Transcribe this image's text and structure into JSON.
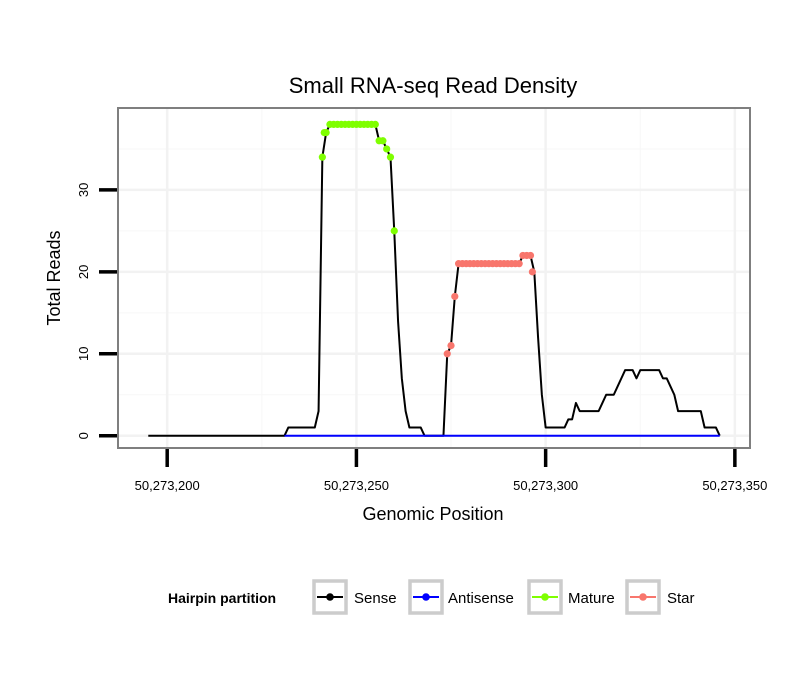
{
  "chart_data": {
    "type": "line",
    "title": "Small RNA-seq Read Density",
    "xlabel": "Genomic Position",
    "ylabel": "Total Reads",
    "xlim": [
      50273187,
      50273354
    ],
    "ylim": [
      -1.5,
      40
    ],
    "x_ticks": [
      50273200,
      50273250,
      50273300,
      50273350
    ],
    "x_tick_labels": [
      "50,273,200",
      "50,273,250",
      "50,273,300",
      "50,273,350"
    ],
    "y_ticks": [
      0,
      10,
      20,
      30
    ],
    "y_tick_labels": [
      "0",
      "10",
      "20",
      "30"
    ],
    "grid": true,
    "legend_position": "bottom",
    "legend": {
      "title": "Hairpin partition",
      "entries": [
        {
          "name": "Sense",
          "color": "#000000"
        },
        {
          "name": "Antisense",
          "color": "#0000ff"
        },
        {
          "name": "Mature",
          "color": "#7fff00"
        },
        {
          "name": "Star",
          "color": "#f8766d"
        }
      ]
    },
    "series": [
      {
        "name": "Sense",
        "color": "#000000",
        "points": [
          [
            50273195,
            0
          ],
          [
            50273231,
            0
          ],
          [
            50273232,
            1
          ],
          [
            50273239,
            1
          ],
          [
            50273240,
            3
          ],
          [
            50273241,
            34
          ],
          [
            50273242,
            37
          ],
          [
            50273243,
            38
          ],
          [
            50273255,
            38
          ],
          [
            50273256,
            36
          ],
          [
            50273257,
            36
          ],
          [
            50273258,
            35
          ],
          [
            50273259,
            34
          ],
          [
            50273260,
            25
          ],
          [
            50273261,
            14
          ],
          [
            50273262,
            7
          ],
          [
            50273263,
            3
          ],
          [
            50273264,
            1
          ],
          [
            50273267,
            1
          ],
          [
            50273268,
            0
          ],
          [
            50273273,
            0
          ],
          [
            50273274,
            10
          ],
          [
            50273275,
            11
          ],
          [
            50273276,
            17
          ],
          [
            50273277,
            21
          ],
          [
            50273293,
            21
          ],
          [
            50273294,
            22
          ],
          [
            50273296,
            22
          ],
          [
            50273297,
            20
          ],
          [
            50273298,
            12
          ],
          [
            50273299,
            5
          ],
          [
            50273300,
            1
          ],
          [
            50273305,
            1
          ],
          [
            50273306,
            2
          ],
          [
            50273307,
            2
          ],
          [
            50273308,
            4
          ],
          [
            50273309,
            3
          ],
          [
            50273314,
            3
          ],
          [
            50273315,
            4
          ],
          [
            50273316,
            5
          ],
          [
            50273318,
            5
          ],
          [
            50273319,
            6
          ],
          [
            50273320,
            7
          ],
          [
            50273321,
            8
          ],
          [
            50273323,
            8
          ],
          [
            50273324,
            7
          ],
          [
            50273325,
            8
          ],
          [
            50273330,
            8
          ],
          [
            50273331,
            7
          ],
          [
            50273332,
            7
          ],
          [
            50273333,
            6
          ],
          [
            50273334,
            5
          ],
          [
            50273335,
            3
          ],
          [
            50273341,
            3
          ],
          [
            50273342,
            1
          ],
          [
            50273345,
            1
          ],
          [
            50273346,
            0
          ]
        ]
      },
      {
        "name": "Antisense",
        "color": "#0000ff",
        "points": [
          [
            50273231,
            0
          ],
          [
            50273346,
            0
          ]
        ]
      },
      {
        "name": "Mature",
        "color": "#7fff00",
        "points": [
          [
            50273241,
            34
          ],
          [
            50273241.5,
            37
          ],
          [
            50273242,
            37
          ],
          [
            50273243,
            38
          ],
          [
            50273244,
            38
          ],
          [
            50273245,
            38
          ],
          [
            50273246,
            38
          ],
          [
            50273247,
            38
          ],
          [
            50273248,
            38
          ],
          [
            50273249,
            38
          ],
          [
            50273250,
            38
          ],
          [
            50273251,
            38
          ],
          [
            50273252,
            38
          ],
          [
            50273253,
            38
          ],
          [
            50273254,
            38
          ],
          [
            50273255,
            38
          ],
          [
            50273256,
            36
          ],
          [
            50273257,
            36
          ],
          [
            50273258,
            35
          ],
          [
            50273259,
            34
          ],
          [
            50273260,
            25
          ]
        ]
      },
      {
        "name": "Star",
        "color": "#f8766d",
        "points": [
          [
            50273274,
            10
          ],
          [
            50273275,
            11
          ],
          [
            50273276,
            17
          ],
          [
            50273277,
            21
          ],
          [
            50273278,
            21
          ],
          [
            50273279,
            21
          ],
          [
            50273280,
            21
          ],
          [
            50273281,
            21
          ],
          [
            50273282,
            21
          ],
          [
            50273283,
            21
          ],
          [
            50273284,
            21
          ],
          [
            50273285,
            21
          ],
          [
            50273286,
            21
          ],
          [
            50273287,
            21
          ],
          [
            50273288,
            21
          ],
          [
            50273289,
            21
          ],
          [
            50273290,
            21
          ],
          [
            50273291,
            21
          ],
          [
            50273292,
            21
          ],
          [
            50273293,
            21
          ],
          [
            50273294,
            22
          ],
          [
            50273295,
            22
          ],
          [
            50273296,
            22
          ],
          [
            50273296.5,
            20
          ]
        ]
      }
    ]
  }
}
